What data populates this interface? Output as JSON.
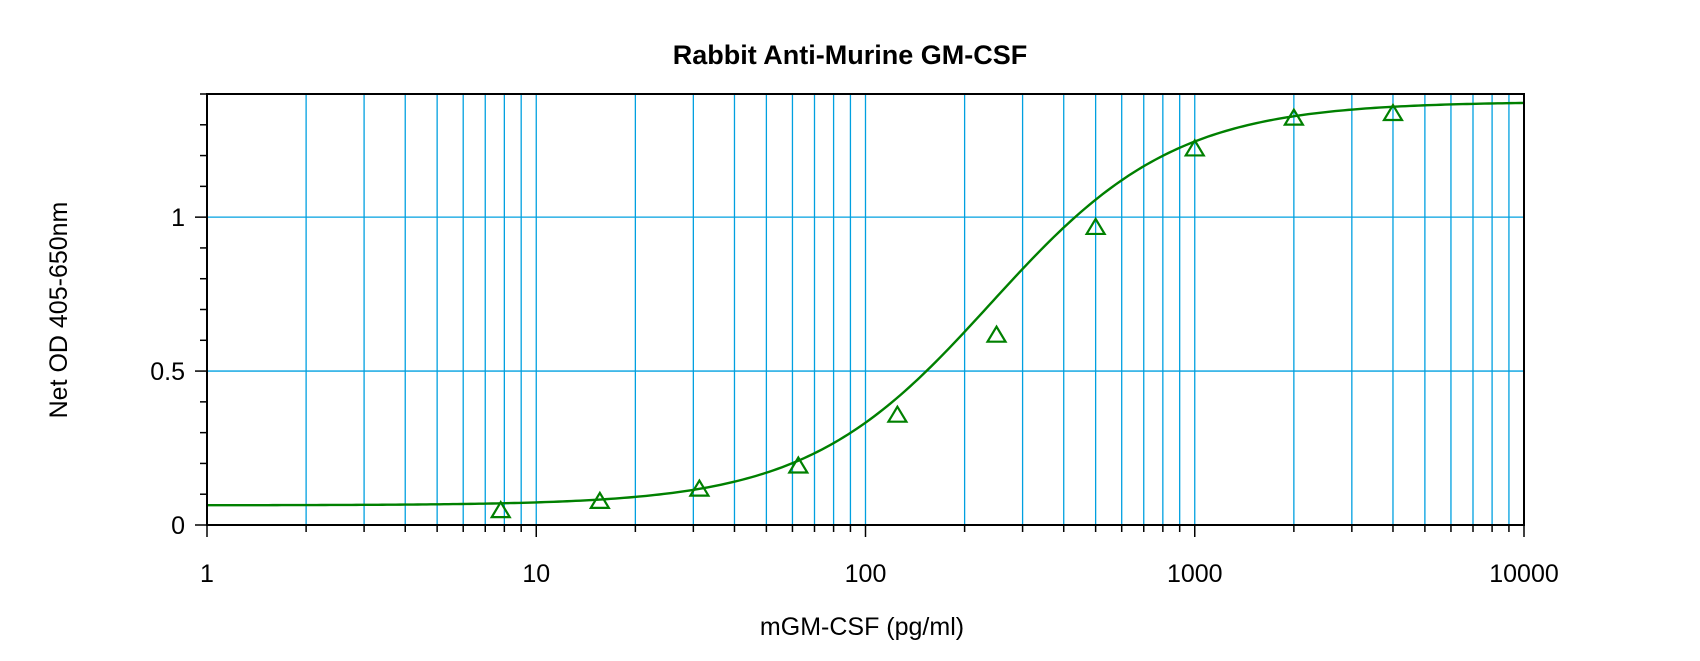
{
  "chart_data": {
    "type": "scatter",
    "title": "Rabbit Anti-Murine GM-CSF",
    "xlabel": "mGM-CSF (pg/ml)",
    "ylabel": "Net OD  405-650nm",
    "xscale": "log",
    "xlim": [
      1,
      10000
    ],
    "ylim": [
      0,
      1.4
    ],
    "xticks": [
      1,
      10,
      100,
      1000,
      10000
    ],
    "xtick_labels": [
      "1",
      "10",
      "100",
      "1000",
      "10000"
    ],
    "yticks": [
      0,
      0.5,
      1
    ],
    "ytick_labels": [
      "0",
      "0.5",
      "1"
    ],
    "grid": true,
    "legend": "none",
    "series": [
      {
        "marker": "triangle-open",
        "color": "#008000",
        "points": [
          {
            "x": 7.8,
            "y": 0.045
          },
          {
            "x": 15.6,
            "y": 0.075
          },
          {
            "x": 31.3,
            "y": 0.115
          },
          {
            "x": 62.5,
            "y": 0.19
          },
          {
            "x": 125,
            "y": 0.355
          },
          {
            "x": 250,
            "y": 0.615
          },
          {
            "x": 500,
            "y": 0.965
          },
          {
            "x": 1000,
            "y": 1.22
          },
          {
            "x": 2000,
            "y": 1.32
          },
          {
            "x": 4000,
            "y": 1.335
          }
        ]
      }
    ],
    "fit_curve": {
      "color": "#008000",
      "model": "4PL",
      "bottom": 0.064,
      "top": 1.375,
      "ec50": 240,
      "hill": 1.55
    },
    "colors": {
      "grid": "#00a0e0",
      "curve": "#008000",
      "axis": "#000000"
    }
  }
}
